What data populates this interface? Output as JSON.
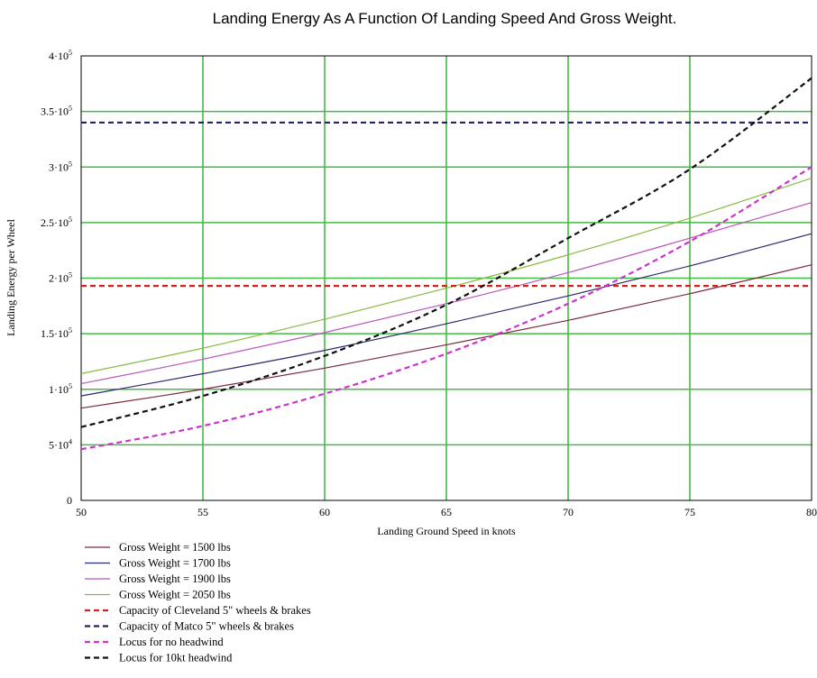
{
  "chart_data": {
    "type": "line",
    "title": "Landing Energy As A Function Of Landing Speed And Gross Weight.",
    "xlabel": "Landing Ground Speed in knots",
    "ylabel": "Landing Energy per Wheel",
    "xlim": [
      50,
      80
    ],
    "ylim": [
      0,
      400000
    ],
    "x_ticks": [
      50,
      55,
      60,
      65,
      70,
      75,
      80
    ],
    "x_tick_labels": [
      "50",
      "55",
      "60",
      "65",
      "70",
      "75",
      "80"
    ],
    "y_ticks": [
      0,
      50000,
      100000,
      150000,
      200000,
      250000,
      300000,
      350000,
      400000
    ],
    "y_tick_labels": [
      {
        "base": "0",
        "exp": ""
      },
      {
        "base": "5·10",
        "exp": "4"
      },
      {
        "base": "1·10",
        "exp": "5"
      },
      {
        "base": "1.5·10",
        "exp": "5"
      },
      {
        "base": "2·10",
        "exp": "5"
      },
      {
        "base": "2.5·10",
        "exp": "5"
      },
      {
        "base": "3·10",
        "exp": "5"
      },
      {
        "base": "3.5·10",
        "exp": "5"
      },
      {
        "base": "4·10",
        "exp": "5"
      }
    ],
    "grid": true,
    "grid_color": "#44bb44",
    "legend_position": "bottom-left",
    "series": [
      {
        "name": "Gross Weight = 1500 lbs",
        "color": "#7a2a3a",
        "dash": "solid",
        "x": [
          50,
          55,
          60,
          65,
          70,
          75,
          80
        ],
        "y": [
          83000,
          100000,
          119000,
          140000,
          162000,
          186000,
          212000
        ]
      },
      {
        "name": "Gross Weight = 1700 lbs",
        "color": "#2a2a6e",
        "dash": "solid",
        "x": [
          50,
          55,
          60,
          65,
          70,
          75,
          80
        ],
        "y": [
          94000,
          114000,
          135000,
          159000,
          184000,
          211000,
          240000
        ]
      },
      {
        "name": "Gross Weight = 1900 lbs",
        "color": "#bb55bb",
        "dash": "solid",
        "x": [
          50,
          55,
          60,
          65,
          70,
          75,
          80
        ],
        "y": [
          105000,
          127000,
          151000,
          177000,
          205000,
          236000,
          268000
        ]
      },
      {
        "name": "Gross Weight = 2050 lbs",
        "color": "#88bb44",
        "dash": "solid",
        "x": [
          50,
          55,
          60,
          65,
          70,
          75,
          80
        ],
        "y": [
          114000,
          137000,
          163000,
          191000,
          221000,
          254000,
          290000
        ]
      },
      {
        "name": "Capacity of Cleveland 5\" wheels & brakes",
        "color": "#cc2222",
        "dash": "dashed",
        "x": [
          50,
          80
        ],
        "y": [
          193000,
          193000
        ]
      },
      {
        "name": "Capacity of Matco 5\" wheels & brakes",
        "color": "#222266",
        "dash": "dashed",
        "x": [
          50,
          80
        ],
        "y": [
          340000,
          340000
        ]
      },
      {
        "name": "Locus for no headwind",
        "color": "#cc33cc",
        "dash": "dashed",
        "x": [
          50,
          55,
          60,
          65,
          70,
          75,
          80
        ],
        "y": [
          46000,
          67000,
          96000,
          132000,
          177000,
          233000,
          300000
        ]
      },
      {
        "name": "Locus for 10kt headwind",
        "color": "#111111",
        "dash": "dashed",
        "x": [
          50,
          55,
          60,
          65,
          70,
          75,
          80
        ],
        "y": [
          66000,
          94000,
          130000,
          176000,
          236000,
          298000,
          380000
        ]
      }
    ]
  }
}
